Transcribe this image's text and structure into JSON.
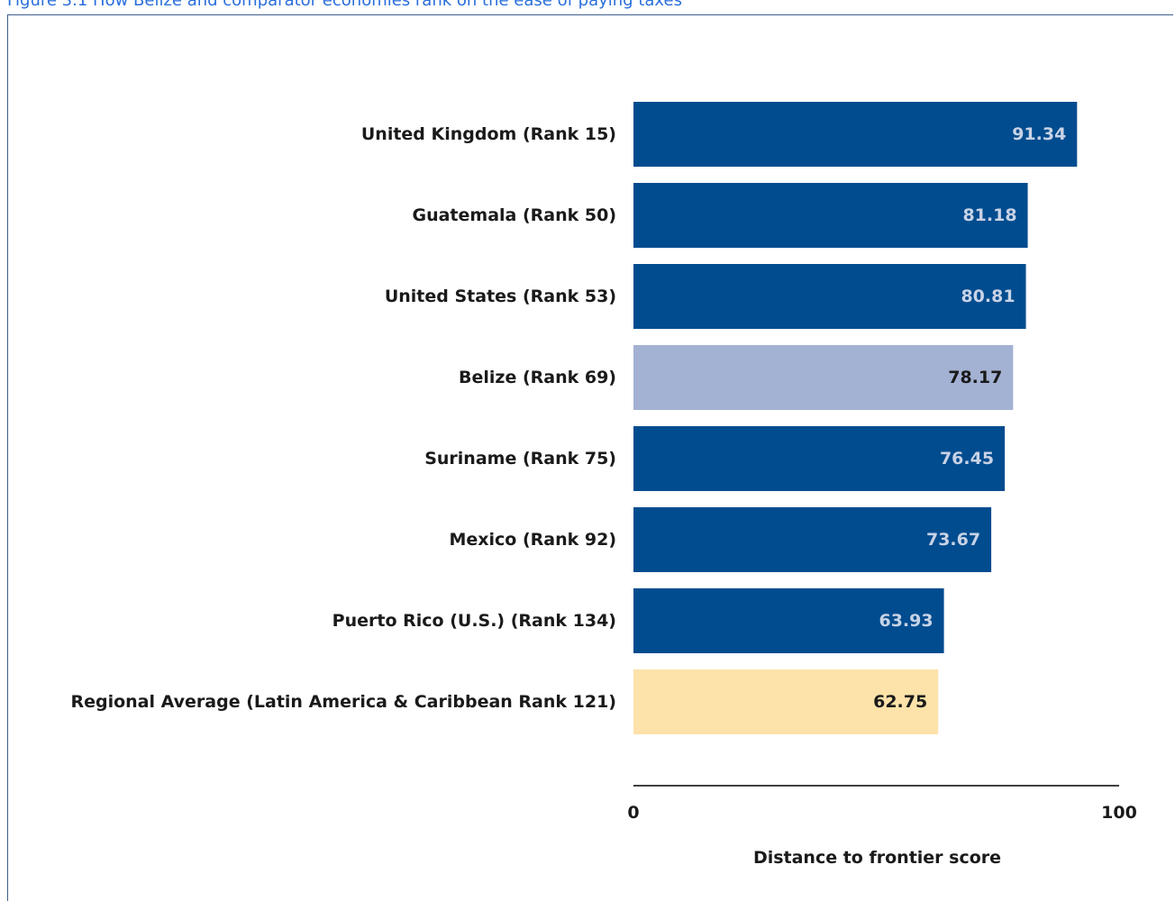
{
  "figure": {
    "title": "Figure 3.1 How Belize and comparator economies rank on the ease of paying taxes"
  },
  "colors": {
    "default_bar": "#004c8f",
    "highlight_bar": "#a3b1d3",
    "regional_bar": "#fde2a9",
    "value_text_on_dark": "#c8d3e6",
    "value_text_on_light": "#1a1a1a",
    "axis_line": "#000000"
  },
  "chart_data": {
    "type": "bar",
    "orientation": "horizontal",
    "categories": [
      "United Kingdom (Rank 15)",
      "Guatemala (Rank 50)",
      "United States (Rank 53)",
      "Belize (Rank 69)",
      "Suriname (Rank 75)",
      "Mexico (Rank 92)",
      "Puerto Rico (U.S.) (Rank 134)",
      "Regional Average (Latin America & Caribbean Rank 121)"
    ],
    "values": [
      91.34,
      81.18,
      80.81,
      78.17,
      76.45,
      73.67,
      63.93,
      62.75
    ],
    "value_labels": [
      "91.34",
      "81.18",
      "80.81",
      "78.17",
      "76.45",
      "73.67",
      "63.93",
      "62.75"
    ],
    "bar_kinds": [
      "default",
      "default",
      "default",
      "highlight",
      "default",
      "default",
      "default",
      "regional"
    ],
    "xlabel": "Distance to frontier score",
    "xlim": [
      0,
      100
    ],
    "x_ticks": [
      "0",
      "100"
    ],
    "grid": false,
    "legend": "none"
  }
}
